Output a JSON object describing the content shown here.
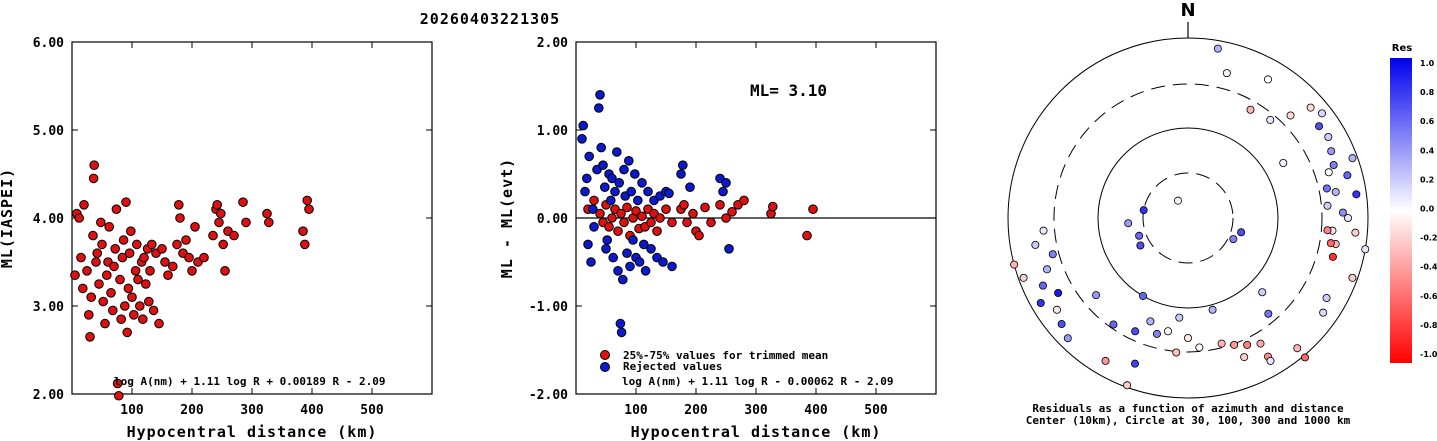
{
  "title": "20260403221305",
  "chart_data": [
    {
      "type": "scatter",
      "xlabel": "Hypocentral distance (km)",
      "ylabel": "ML(IASPEI)",
      "xlim": [
        0,
        600
      ],
      "ylim": [
        2.0,
        6.0
      ],
      "xticks": [
        "100",
        "200",
        "300",
        "400",
        "500"
      ],
      "yticks": [
        "2.00",
        "3.00",
        "4.00",
        "5.00",
        "6.00"
      ],
      "formula": "log A(nm) + 1.11 log R + 0.00189 R - 2.09",
      "series": [
        {
          "name": "magnitudes",
          "color": "#dd1111",
          "points": [
            [
              5,
              3.35
            ],
            [
              8,
              4.05
            ],
            [
              12,
              4.0
            ],
            [
              15,
              3.55
            ],
            [
              18,
              3.2
            ],
            [
              20,
              4.15
            ],
            [
              25,
              3.4
            ],
            [
              28,
              2.9
            ],
            [
              30,
              2.65
            ],
            [
              32,
              3.1
            ],
            [
              35,
              3.8
            ],
            [
              36,
              4.45
            ],
            [
              37,
              4.6
            ],
            [
              40,
              3.5
            ],
            [
              42,
              3.6
            ],
            [
              45,
              3.25
            ],
            [
              48,
              3.95
            ],
            [
              50,
              3.7
            ],
            [
              52,
              3.05
            ],
            [
              55,
              2.8
            ],
            [
              58,
              3.35
            ],
            [
              60,
              3.5
            ],
            [
              62,
              3.9
            ],
            [
              65,
              3.15
            ],
            [
              68,
              2.95
            ],
            [
              70,
              3.45
            ],
            [
              72,
              3.65
            ],
            [
              74,
              4.1
            ],
            [
              76,
              2.12
            ],
            [
              78,
              1.98
            ],
            [
              80,
              3.3
            ],
            [
              82,
              2.85
            ],
            [
              84,
              3.55
            ],
            [
              86,
              3.75
            ],
            [
              88,
              3.0
            ],
            [
              90,
              4.18
            ],
            [
              92,
              2.7
            ],
            [
              94,
              3.2
            ],
            [
              96,
              3.6
            ],
            [
              98,
              3.85
            ],
            [
              100,
              3.1
            ],
            [
              103,
              2.9
            ],
            [
              106,
              3.4
            ],
            [
              108,
              3.7
            ],
            [
              110,
              3.3
            ],
            [
              113,
              3.0
            ],
            [
              116,
              3.5
            ],
            [
              118,
              2.85
            ],
            [
              120,
              3.55
            ],
            [
              123,
              3.25
            ],
            [
              126,
              3.65
            ],
            [
              128,
              3.05
            ],
            [
              130,
              3.4
            ],
            [
              133,
              3.7
            ],
            [
              136,
              2.95
            ],
            [
              140,
              3.6
            ],
            [
              145,
              2.8
            ],
            [
              150,
              3.65
            ],
            [
              155,
              3.5
            ],
            [
              160,
              3.35
            ],
            [
              168,
              3.45
            ],
            [
              175,
              3.7
            ],
            [
              178,
              4.15
            ],
            [
              180,
              4.0
            ],
            [
              185,
              3.6
            ],
            [
              190,
              3.75
            ],
            [
              195,
              3.55
            ],
            [
              200,
              3.4
            ],
            [
              205,
              3.9
            ],
            [
              210,
              3.5
            ],
            [
              220,
              3.55
            ],
            [
              235,
              3.8
            ],
            [
              240,
              4.1
            ],
            [
              242,
              4.15
            ],
            [
              245,
              3.95
            ],
            [
              248,
              4.05
            ],
            [
              252,
              3.7
            ],
            [
              255,
              3.4
            ],
            [
              260,
              3.85
            ],
            [
              270,
              3.8
            ],
            [
              285,
              4.18
            ],
            [
              290,
              3.95
            ],
            [
              325,
              4.05
            ],
            [
              328,
              3.95
            ],
            [
              385,
              3.85
            ],
            [
              388,
              3.7
            ],
            [
              392,
              4.2
            ],
            [
              395,
              4.1
            ]
          ]
        }
      ]
    },
    {
      "type": "scatter",
      "xlabel": "Hypocentral distance (km)",
      "ylabel": "ML - ML(evt)",
      "xlim": [
        0,
        600
      ],
      "ylim": [
        -2.0,
        2.0
      ],
      "xticks": [
        "100",
        "200",
        "300",
        "400",
        "500"
      ],
      "yticks": [
        "-2.00",
        "-1.00",
        "0.00",
        "1.00",
        "2.00"
      ],
      "annotation": "ML= 3.10",
      "formula": "log A(nm) + 1.11 log R - 0.00062 R - 2.09",
      "legend": [
        "25%-75% values for trimmed mean",
        "Rejected values"
      ],
      "series": [
        {
          "name": "25%-75% values for trimmed mean",
          "color": "#dd1111",
          "points": [
            [
              20,
              0.1
            ],
            [
              30,
              0.2
            ],
            [
              40,
              0.05
            ],
            [
              45,
              -0.05
            ],
            [
              50,
              0.15
            ],
            [
              55,
              -0.1
            ],
            [
              60,
              0.0
            ],
            [
              65,
              0.1
            ],
            [
              70,
              -0.15
            ],
            [
              75,
              0.05
            ],
            [
              80,
              -0.05
            ],
            [
              85,
              0.12
            ],
            [
              90,
              -0.2
            ],
            [
              95,
              0.0
            ],
            [
              100,
              0.08
            ],
            [
              105,
              -0.12
            ],
            [
              110,
              0.02
            ],
            [
              115,
              -0.1
            ],
            [
              120,
              0.1
            ],
            [
              125,
              -0.05
            ],
            [
              130,
              0.05
            ],
            [
              135,
              -0.15
            ],
            [
              140,
              0.0
            ],
            [
              150,
              0.1
            ],
            [
              160,
              -0.05
            ],
            [
              175,
              0.1
            ],
            [
              180,
              0.15
            ],
            [
              185,
              -0.05
            ],
            [
              195,
              0.05
            ],
            [
              200,
              -0.15
            ],
            [
              205,
              -0.2
            ],
            [
              215,
              0.12
            ],
            [
              225,
              -0.05
            ],
            [
              240,
              0.15
            ],
            [
              250,
              0.0
            ],
            [
              260,
              0.07
            ],
            [
              270,
              0.15
            ],
            [
              280,
              0.2
            ],
            [
              325,
              0.05
            ],
            [
              328,
              0.13
            ],
            [
              385,
              -0.2
            ],
            [
              395,
              0.1
            ]
          ]
        },
        {
          "name": "Rejected values",
          "color": "#0a1acc",
          "points": [
            [
              10,
              0.9
            ],
            [
              12,
              1.05
            ],
            [
              15,
              0.3
            ],
            [
              18,
              0.45
            ],
            [
              20,
              -0.3
            ],
            [
              22,
              0.7
            ],
            [
              25,
              -0.5
            ],
            [
              28,
              0.1
            ],
            [
              30,
              -0.1
            ],
            [
              35,
              0.55
            ],
            [
              38,
              1.25
            ],
            [
              40,
              1.4
            ],
            [
              42,
              0.8
            ],
            [
              45,
              0.6
            ],
            [
              48,
              0.35
            ],
            [
              50,
              -0.35
            ],
            [
              52,
              -0.25
            ],
            [
              55,
              0.5
            ],
            [
              58,
              0.2
            ],
            [
              60,
              0.45
            ],
            [
              62,
              -0.45
            ],
            [
              65,
              0.3
            ],
            [
              68,
              0.75
            ],
            [
              70,
              -0.6
            ],
            [
              72,
              0.4
            ],
            [
              74,
              -1.2
            ],
            [
              76,
              -1.3
            ],
            [
              78,
              -0.7
            ],
            [
              80,
              0.55
            ],
            [
              82,
              0.25
            ],
            [
              85,
              -0.4
            ],
            [
              88,
              0.65
            ],
            [
              90,
              -0.55
            ],
            [
              92,
              0.3
            ],
            [
              95,
              -0.25
            ],
            [
              98,
              0.5
            ],
            [
              100,
              -0.45
            ],
            [
              103,
              0.2
            ],
            [
              106,
              -0.5
            ],
            [
              110,
              0.4
            ],
            [
              113,
              -0.3
            ],
            [
              116,
              -0.6
            ],
            [
              120,
              0.3
            ],
            [
              125,
              -0.35
            ],
            [
              130,
              0.2
            ],
            [
              135,
              -0.45
            ],
            [
              140,
              0.25
            ],
            [
              145,
              -0.5
            ],
            [
              150,
              0.3
            ],
            [
              155,
              0.28
            ],
            [
              160,
              -0.55
            ],
            [
              175,
              0.5
            ],
            [
              178,
              0.6
            ],
            [
              190,
              0.35
            ],
            [
              240,
              0.45
            ],
            [
              245,
              0.3
            ],
            [
              250,
              0.4
            ],
            [
              255,
              -0.35
            ]
          ]
        }
      ]
    },
    {
      "type": "polar-scatter",
      "compass": "N",
      "caption_line1": "Residuals as a function of azimuth and distance",
      "caption_line2": "Center (10km), Circle at 30, 100, 300 and 1000 km",
      "colorbar_title": "Res",
      "colorbar_ticks": [
        "1.0",
        "0.8",
        "0.6",
        "0.4",
        "0.2",
        "0.0",
        "-0.2",
        "-0.4",
        "-0.6",
        "-0.8",
        "-1.0"
      ],
      "colorbar_range": [
        -1.0,
        1.0
      ],
      "positive_color": "#0000ee",
      "negative_color": "#ff0000",
      "points": [
        [
          20,
          330,
          0.05
        ],
        [
          52,
          250,
          0.6
        ],
        [
          55,
          240,
          0.7
        ],
        [
          60,
          265,
          0.4
        ],
        [
          45,
          280,
          0.8
        ],
        [
          50,
          115,
          0.5
        ],
        [
          55,
          105,
          0.7
        ],
        [
          140,
          85,
          0.2
        ],
        [
          150,
          80,
          0.3
        ],
        [
          155,
          70,
          0.5
        ],
        [
          160,
          90,
          0.1
        ],
        [
          165,
          75,
          0.6
        ],
        [
          145,
          95,
          -0.1
        ],
        [
          158,
          65,
          0.4
        ],
        [
          170,
          82,
          0.8
        ],
        [
          150,
          100,
          -0.3
        ],
        [
          162,
          60,
          0.2
        ],
        [
          148,
          72,
          0.0
        ],
        [
          168,
          95,
          -0.2
        ],
        [
          155,
          88,
          0.45
        ],
        [
          175,
          70,
          0.3
        ],
        [
          142,
          78,
          0.55
        ],
        [
          160,
          55,
          0.7
        ],
        [
          145,
          100,
          -0.6
        ],
        [
          150,
          105,
          -0.8
        ],
        [
          140,
          95,
          -0.5
        ],
        [
          175,
          110,
          -0.2
        ],
        [
          180,
          100,
          0.1
        ],
        [
          170,
          52,
          0.15
        ],
        [
          165,
          48,
          -0.15
        ],
        [
          150,
          250,
          0.3
        ],
        [
          160,
          245,
          0.6
        ],
        [
          170,
          240,
          0.8
        ],
        [
          140,
          255,
          0.5
        ],
        [
          155,
          260,
          0.2
        ],
        [
          165,
          230,
          0.7
        ],
        [
          175,
          250,
          -0.2
        ],
        [
          180,
          255,
          -0.3
        ],
        [
          150,
          240,
          0.9
        ],
        [
          145,
          265,
          0.1
        ],
        [
          160,
          235,
          -0.1
        ],
        [
          170,
          225,
          0.4
        ],
        [
          130,
          215,
          0.6
        ],
        [
          125,
          205,
          0.7
        ],
        [
          120,
          195,
          0.5
        ],
        [
          110,
          200,
          0.3
        ],
        [
          100,
          185,
          0.2
        ],
        [
          115,
          190,
          0.0
        ],
        [
          120,
          180,
          -0.1
        ],
        [
          130,
          165,
          -0.3
        ],
        [
          135,
          160,
          -0.4
        ],
        [
          140,
          155,
          -0.5
        ],
        [
          145,
          150,
          -0.35
        ],
        [
          150,
          158,
          -0.2
        ],
        [
          160,
          150,
          -0.45
        ],
        [
          170,
          140,
          -0.3
        ],
        [
          165,
          150,
          0.1
        ],
        [
          130,
          175,
          0.0
        ],
        [
          155,
          200,
          0.75
        ],
        [
          165,
          210,
          -0.4
        ],
        [
          178,
          200,
          -0.2
        ],
        [
          182,
          140,
          -0.6
        ],
        [
          160,
          120,
          0.2
        ],
        [
          120,
          230,
          0.4
        ],
        [
          90,
          210,
          0.6
        ],
        [
          95,
          165,
          0.3
        ],
        [
          135,
          185,
          -0.25
        ],
        [
          150,
          15,
          0.05
        ],
        [
          128,
          40,
          0.1
        ],
        [
          160,
          30,
          0.0
        ],
        [
          172,
          10,
          0.3
        ],
        [
          145,
          45,
          -0.15
        ],
        [
          125,
          30,
          -0.3
        ],
        [
          110,
          60,
          0.05
        ],
        [
          105,
          135,
          0.2
        ],
        [
          125,
          140,
          0.55
        ],
        [
          165,
          125,
          0.15
        ]
      ]
    }
  ]
}
